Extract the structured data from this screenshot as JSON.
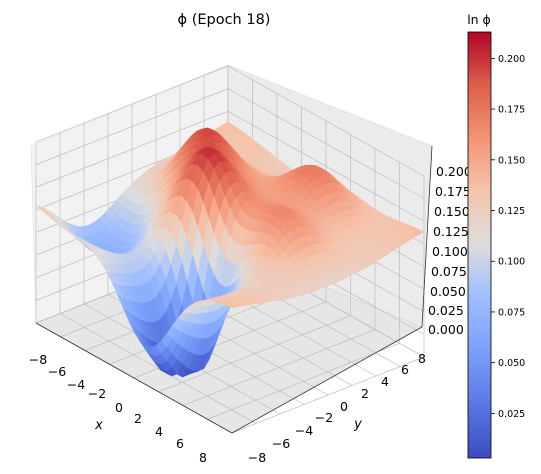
{
  "title": "ϕ (Epoch 18)",
  "colorbar": {
    "label": "ln ϕ",
    "ticks": [
      "0.025",
      "0.050",
      "0.075",
      "0.100",
      "0.125",
      "0.150",
      "0.175",
      "0.200"
    ],
    "range": [
      0.003,
      0.213
    ],
    "colormap": "coolwarm",
    "colors": {
      "low": "#3b4cc0",
      "mid": "#dddddd",
      "high": "#b40426"
    }
  },
  "chart_data": {
    "type": "surface3d",
    "title": "ϕ (Epoch 18)",
    "xlabel": "x",
    "ylabel": "y",
    "zlabel": "",
    "xlim": [
      -8,
      8
    ],
    "ylim": [
      -8,
      8
    ],
    "zlim": [
      0.0,
      0.2
    ],
    "x_ticks": [
      "−8",
      "−6",
      "−4",
      "−2",
      "0",
      "2",
      "4",
      "6",
      "8"
    ],
    "y_ticks": [
      "−6",
      "−4",
      "−2",
      "0",
      "2",
      "4",
      "6",
      "8"
    ],
    "y_first_tick": "−8",
    "z_ticks": [
      "0.000",
      "0.025",
      "0.050",
      "0.075",
      "0.100",
      "0.125",
      "0.150",
      "0.175",
      "0.200"
    ],
    "grid": true,
    "surface_features": {
      "background_level": 0.13,
      "bumps": [
        {
          "x": -4.0,
          "y": 2.0,
          "z": 0.19
        },
        {
          "x": 1.5,
          "y": 5.5,
          "z": 0.175
        },
        {
          "x": -1.0,
          "y": -1.0,
          "z": 0.2
        },
        {
          "x": 4.0,
          "y": 0.5,
          "z": 0.165
        }
      ],
      "minimum_region": {
        "x": 1.0,
        "y": -4.0,
        "z": 0.005
      }
    }
  }
}
